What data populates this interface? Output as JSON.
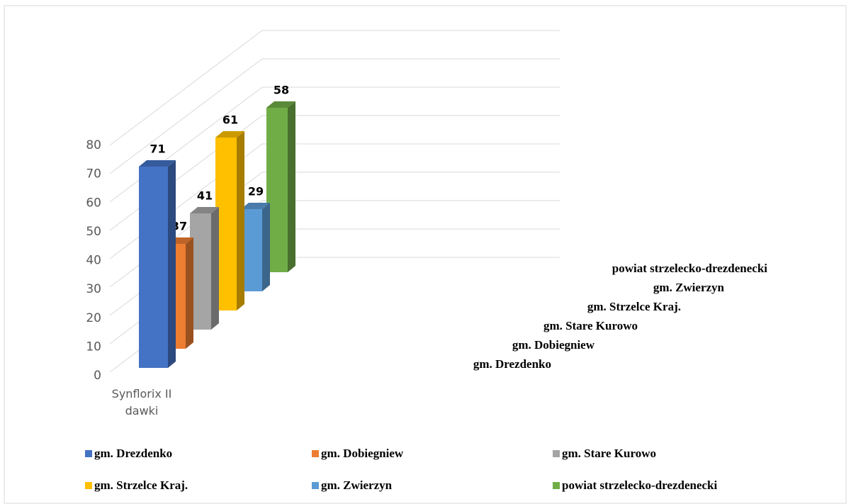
{
  "chart_data": {
    "type": "bar3d",
    "categories": [
      "Synflorix II dawki"
    ],
    "series": [
      {
        "name": "gm. Drezdenko",
        "color": "#4472c4",
        "values": [
          71
        ]
      },
      {
        "name": "gm. Dobiegniew",
        "color": "#ed7d31",
        "values": [
          37
        ]
      },
      {
        "name": "gm. Stare Kurowo",
        "color": "#a5a5a5",
        "values": [
          41
        ]
      },
      {
        "name": "gm. Strzelce Kraj.",
        "color": "#ffc000",
        "values": [
          61
        ]
      },
      {
        "name": "gm. Zwierzyn",
        "color": "#5b9bd5",
        "values": [
          29
        ]
      },
      {
        "name": "powiat strzelecko-drezdenecki",
        "color": "#70ad47",
        "values": [
          58
        ]
      }
    ],
    "ylim": [
      0,
      80
    ],
    "yticks": [
      0,
      10,
      20,
      30,
      40,
      50,
      60,
      70,
      80
    ],
    "grid": true,
    "legend": "bottom"
  }
}
